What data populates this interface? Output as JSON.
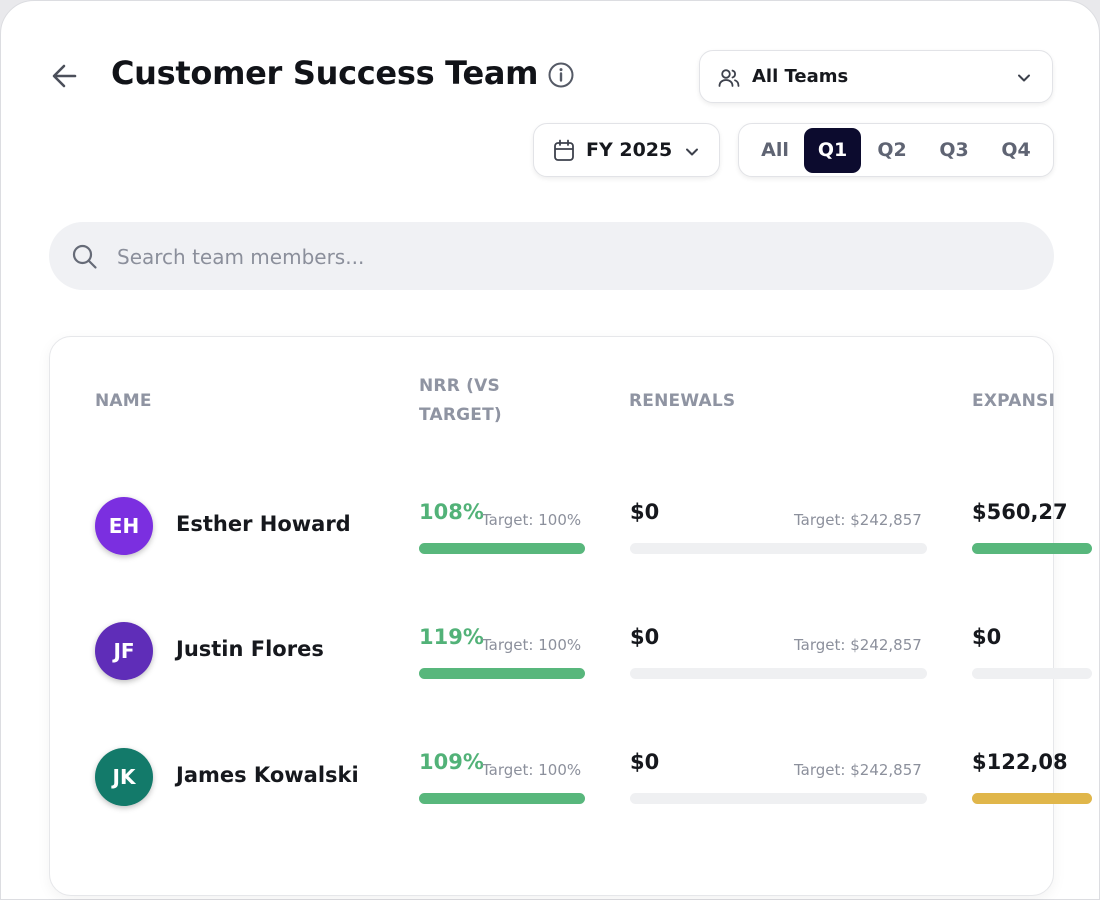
{
  "header": {
    "title": "Customer Success Team",
    "back_icon": "arrow-left-icon",
    "info_icon": "info-icon"
  },
  "team_filter": {
    "label": "All Teams",
    "icon": "users-icon"
  },
  "fiscal_year": {
    "label": "FY 2025",
    "icon": "calendar-icon"
  },
  "quarter_tabs": [
    {
      "label": "All",
      "active": false
    },
    {
      "label": "Q1",
      "active": true
    },
    {
      "label": "Q2",
      "active": false
    },
    {
      "label": "Q3",
      "active": false
    },
    {
      "label": "Q4",
      "active": false
    }
  ],
  "search": {
    "placeholder": "Search team members...",
    "value": ""
  },
  "table": {
    "columns": {
      "name": "NAME",
      "nrr_line1": "NRR (VS",
      "nrr_line2": "TARGET)",
      "renewals": "RENEWALS",
      "expansion": "EXPANSI"
    },
    "rows": [
      {
        "initials": "EH",
        "name": "Esther Howard",
        "avatar_color": "#7b2fe0",
        "nrr": "108%",
        "nrr_target": "Target: 100%",
        "nrr_progress": 1.0,
        "renewals": "$0",
        "renewals_target": "Target: $242,857",
        "renewals_progress": 0,
        "expansion": "$560,27",
        "expansion_progress": 1.0,
        "expansion_color": "#58b77c"
      },
      {
        "initials": "JF",
        "name": "Justin Flores",
        "avatar_color": "#5f2db8",
        "nrr": "119%",
        "nrr_target": "Target: 100%",
        "nrr_progress": 1.0,
        "renewals": "$0",
        "renewals_target": "Target: $242,857",
        "renewals_progress": 0,
        "expansion": "$0",
        "expansion_progress": 0,
        "expansion_color": "#58b77c"
      },
      {
        "initials": "JK",
        "name": "James Kowalski",
        "avatar_color": "#137a6a",
        "nrr": "109%",
        "nrr_target": "Target: 100%",
        "nrr_progress": 1.0,
        "renewals": "$0",
        "renewals_target": "Target: $242,857",
        "renewals_progress": 0,
        "expansion": "$122,08",
        "expansion_progress": 1.0,
        "expansion_color": "#e0b64a"
      }
    ]
  },
  "colors": {
    "accent": "#0c0b2e",
    "progress_green": "#58b77c",
    "progress_track": "#eff0f2",
    "nrr_text": "#52b278"
  }
}
